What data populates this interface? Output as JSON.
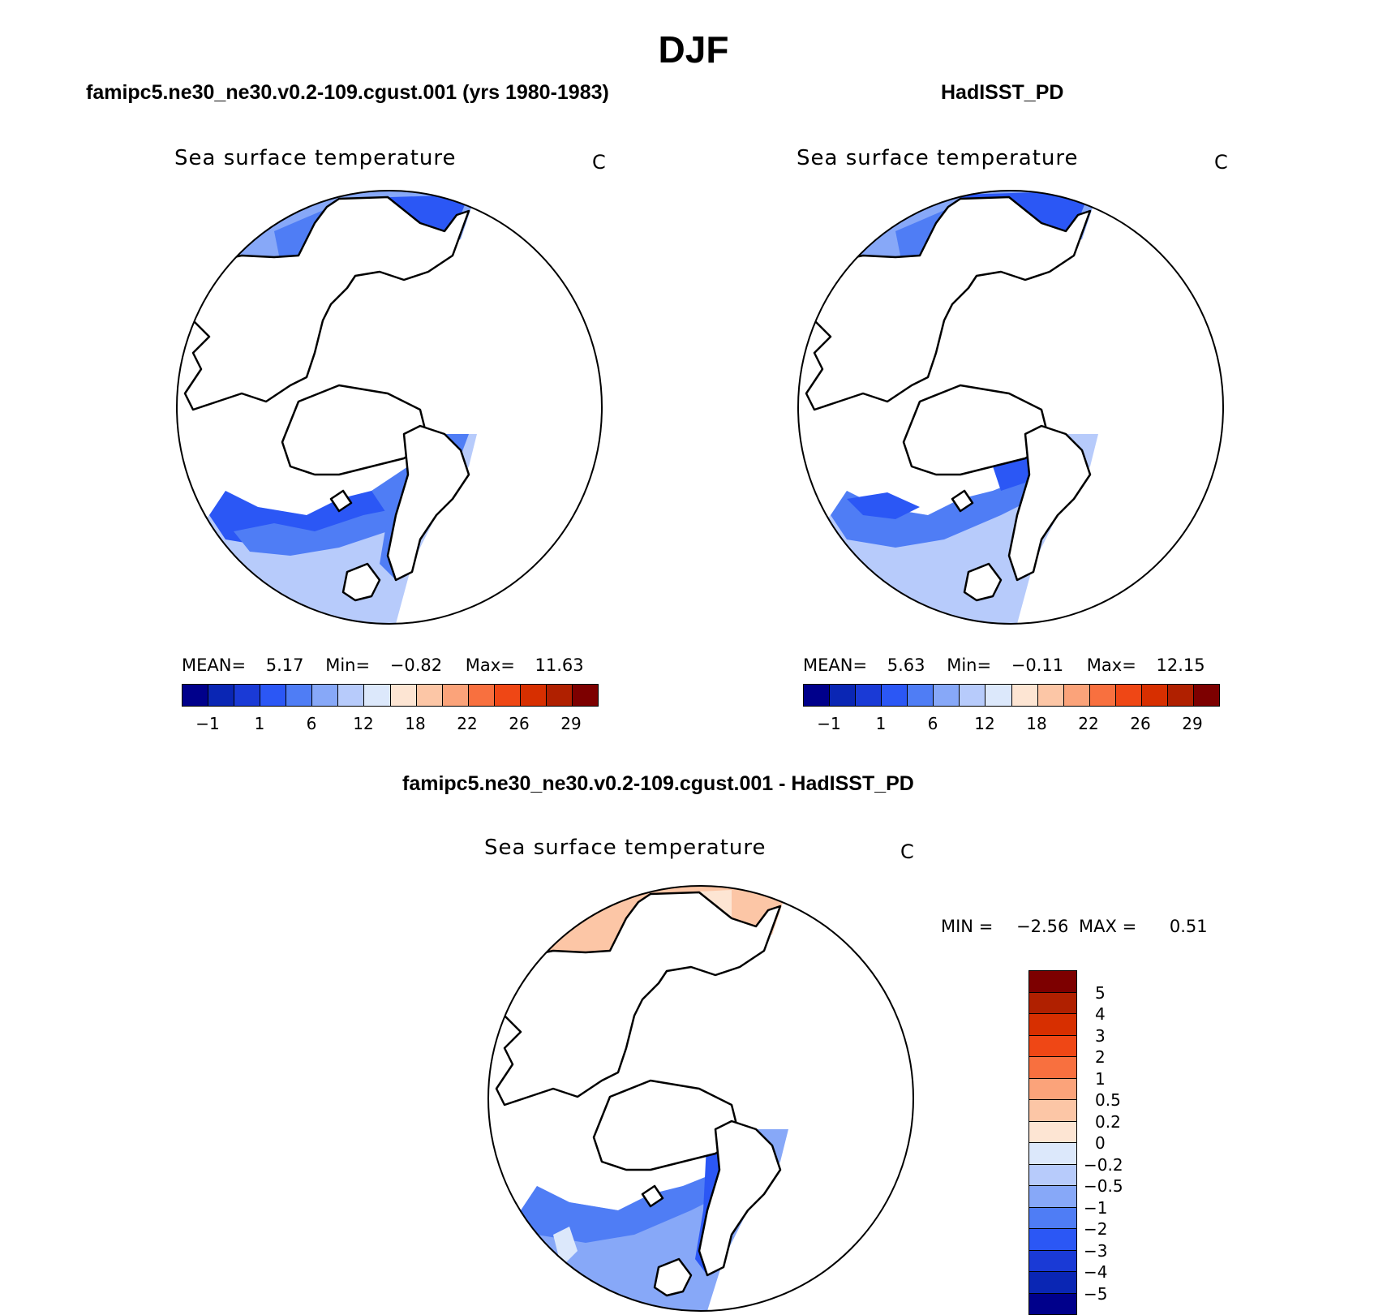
{
  "page_title": "DJF",
  "panels": [
    {
      "case_title": "famipc5.ne30_ne30.v0.2-109.cgust.001 (yrs 1980-1983)",
      "var_title": "Sea surface temperature",
      "unit": "C",
      "stats": {
        "mean_label": "MEAN=",
        "mean": "5.17",
        "min_label": "Min=",
        "min": "−0.82",
        "max_label": "Max=",
        "max": "11.63"
      }
    },
    {
      "case_title": "HadISST_PD",
      "var_title": "Sea surface temperature",
      "unit": "C",
      "stats": {
        "mean_label": "MEAN=",
        "mean": "5.63",
        "min_label": "Min=",
        "min": "−0.11",
        "max_label": "Max=",
        "max": "12.15"
      }
    }
  ],
  "abs_colorbar": {
    "colors": [
      "#00008b",
      "#0a26b4",
      "#1a3ad6",
      "#2b57f5",
      "#4f7df5",
      "#87a8f8",
      "#b7cbfb",
      "#dce8fb",
      "#fde5d3",
      "#fcc6a6",
      "#fba37a",
      "#f8703f",
      "#ef4715",
      "#d72f00",
      "#b02000",
      "#7d0000"
    ],
    "tick_labels": [
      "−1",
      "1",
      "6",
      "12",
      "18",
      "22",
      "26",
      "29"
    ]
  },
  "diff_panel": {
    "case_title": "famipc5.ne30_ne30.v0.2-109.cgust.001 - HadISST_PD",
    "var_title": "Sea surface temperature",
    "unit": "C",
    "stats": {
      "min_label": "MIN =",
      "min": "−2.56",
      "max_label": "MAX =",
      "max": "0.51"
    }
  },
  "diff_colorbar": {
    "colors": [
      "#7d0000",
      "#b02000",
      "#d72f00",
      "#ef4715",
      "#f8703f",
      "#fba37a",
      "#fcc6a6",
      "#fde5d3",
      "#dce8fb",
      "#b7cbfb",
      "#87a8f8",
      "#4f7df5",
      "#2b57f5",
      "#1a3ad6",
      "#0a26b4",
      "#00008b"
    ],
    "tick_labels": [
      "5",
      "4",
      "3",
      "2",
      "1",
      "0.5",
      "0.2",
      "0",
      "−0.2",
      "−0.5",
      "−1",
      "−2",
      "−3",
      "−4",
      "−5"
    ]
  },
  "map_colors": {
    "land_line": "#000000",
    "sst_light": "#b7cbfb",
    "sst_mid": "#87a8f8",
    "sst_blue": "#4f7df5",
    "sst_deep": "#2b57f5",
    "diff_warm": "#fcc6a6",
    "diff_pale": "#dce8fb"
  }
}
